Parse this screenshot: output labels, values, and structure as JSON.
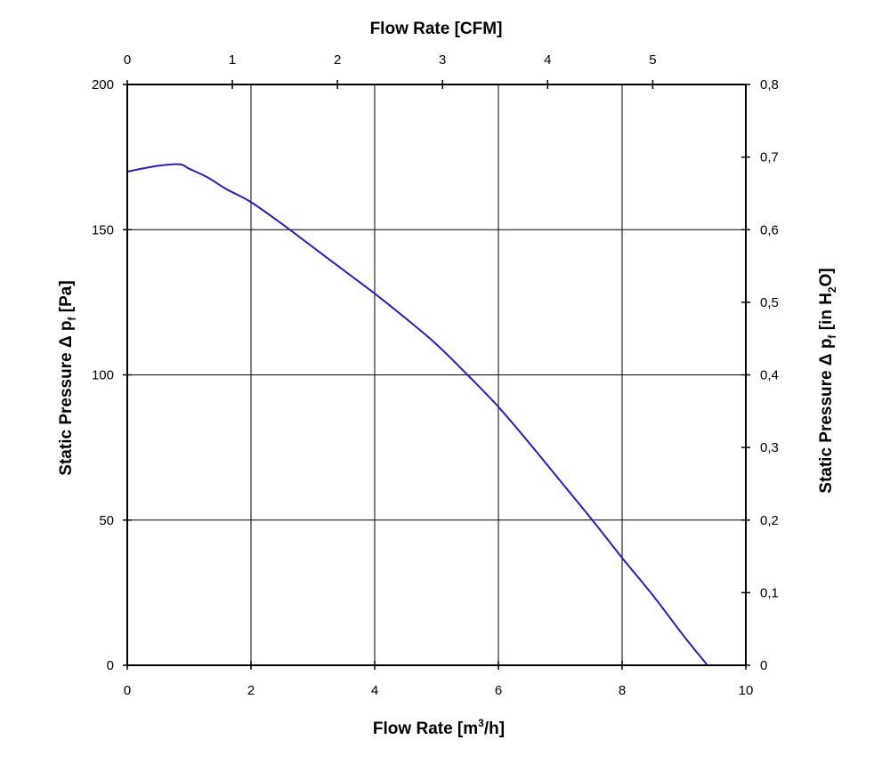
{
  "chart_data": {
    "type": "line",
    "title": "",
    "x_bottom": {
      "label_main": "Flow Rate [m",
      "label_sup": "3",
      "label_tail": "/h]",
      "range": [
        0,
        10
      ],
      "ticks": [
        0,
        2,
        4,
        6,
        8,
        10
      ],
      "tick_labels": [
        "0",
        "2",
        "4",
        "6",
        "8",
        "10"
      ]
    },
    "x_top": {
      "label": "Flow Rate [CFM]",
      "range": [
        0,
        5.886
      ],
      "ticks": [
        0,
        1,
        2,
        3,
        4,
        5
      ],
      "tick_labels": [
        "0",
        "1",
        "2",
        "3",
        "4",
        "5"
      ]
    },
    "y_left": {
      "label_main": "Static Pressure Δ p",
      "label_sub": "f",
      "label_tail": " [Pa]",
      "range": [
        0,
        200
      ],
      "ticks": [
        0,
        50,
        100,
        150,
        200
      ],
      "tick_labels": [
        "0",
        "50",
        "100",
        "150",
        "200"
      ]
    },
    "y_right": {
      "label_main": "Static Pressure Δ p",
      "label_sub1": "f",
      "label_mid": " [in H",
      "label_sub2": "2",
      "label_tail": "O]",
      "range": [
        0,
        0.8
      ],
      "ticks": [
        0,
        0.1,
        0.2,
        0.3,
        0.4,
        0.5,
        0.6,
        0.7,
        0.8
      ],
      "tick_labels": [
        "0",
        "0,1",
        "0,2",
        "0,3",
        "0,4",
        "0,5",
        "0,6",
        "0,7",
        "0,8"
      ]
    },
    "grid": true,
    "series": [
      {
        "color": "#2222bb",
        "x": [
          0,
          0.5,
          0.85,
          1.0,
          1.3,
          1.6,
          2.0,
          2.5,
          3.0,
          3.5,
          4.0,
          4.5,
          5.0,
          5.5,
          6.0,
          6.5,
          7.0,
          7.5,
          8.0,
          8.5,
          9.0,
          9.38
        ],
        "y": [
          170,
          172,
          172.5,
          171,
          168,
          164,
          159.5,
          152,
          144,
          136,
          128,
          119.5,
          110.5,
          100,
          89,
          76.5,
          63.5,
          50.5,
          37,
          24,
          10,
          0
        ]
      }
    ]
  }
}
